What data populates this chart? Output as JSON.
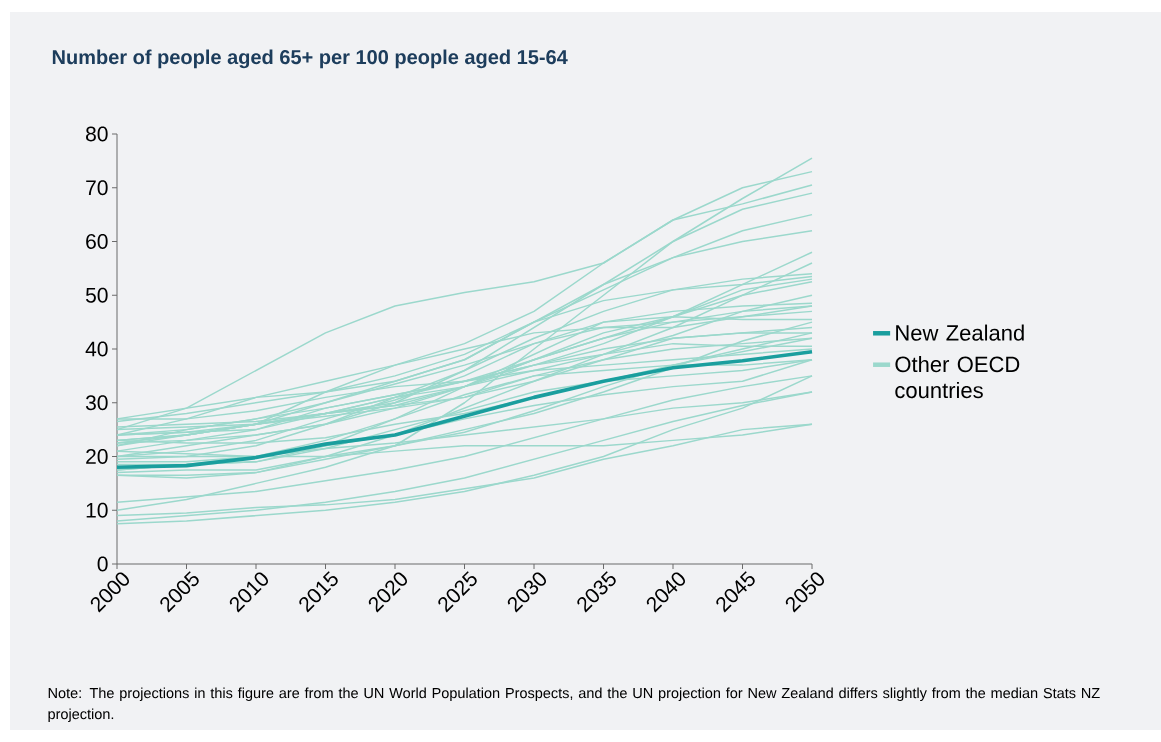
{
  "chart_data": {
    "type": "line",
    "title": "Number of people aged 65+ per 100 people aged 15-64",
    "annotations": [
      "Note: The projections in this figure are from the UN World Population Prospects, and the UN projection for New Zealand differs slightly from the median Stats NZ projection."
    ],
    "x": [
      2000,
      2005,
      2010,
      2015,
      2020,
      2025,
      2030,
      2035,
      2040,
      2045,
      2050
    ],
    "xlim": [
      2000,
      2050
    ],
    "ylim": [
      0,
      80
    ],
    "xticks": [
      2000,
      2005,
      2010,
      2015,
      2020,
      2025,
      2030,
      2035,
      2040,
      2045,
      2050
    ],
    "yticks": [
      0,
      10,
      20,
      30,
      40,
      50,
      60,
      70,
      80
    ],
    "legend": "right",
    "series": [
      {
        "name": "New Zealand",
        "color": "#1a9e9e",
        "values": [
          18,
          18.3,
          19.8,
          22.3,
          24,
          27.5,
          31,
          34,
          36.5,
          37.8,
          39.5
        ]
      },
      {
        "name": "Other OECD countries",
        "color": "#9bd8cc",
        "values": [
          25,
          29,
          36,
          43,
          48,
          50.5,
          52.5,
          56,
          64,
          70,
          73
        ]
      },
      {
        "color": "#9bd8cc",
        "values": [
          10,
          12,
          15,
          18,
          22,
          30,
          40,
          50,
          60,
          68,
          75.5
        ]
      },
      {
        "color": "#9bd8cc",
        "values": [
          27,
          29,
          31,
          34,
          37,
          41,
          47,
          56,
          64,
          67,
          70.5
        ]
      },
      {
        "color": "#9bd8cc",
        "values": [
          24,
          24.5,
          26,
          28,
          31,
          36,
          44,
          52,
          60,
          66,
          69
        ]
      },
      {
        "color": "#9bd8cc",
        "values": [
          24,
          25,
          27,
          30,
          34,
          38,
          45,
          52,
          57,
          62,
          65
        ]
      },
      {
        "color": "#9bd8cc",
        "values": [
          26.5,
          28,
          30,
          32,
          35,
          39,
          45,
          51,
          57,
          60,
          62
        ]
      },
      {
        "color": "#9bd8cc",
        "values": [
          17.5,
          18.5,
          19,
          22,
          27,
          33,
          38,
          42,
          46,
          52,
          58
        ]
      },
      {
        "color": "#9bd8cc",
        "values": [
          16.5,
          16.5,
          17,
          20,
          24,
          29,
          34,
          39,
          44,
          50,
          56
        ]
      },
      {
        "color": "#9bd8cc",
        "values": [
          24,
          27,
          31,
          32,
          34,
          38,
          45,
          49,
          51,
          52,
          53.5
        ]
      },
      {
        "color": "#9bd8cc",
        "values": [
          20,
          22,
          24,
          26,
          30,
          36,
          42,
          47,
          51,
          53,
          54
        ]
      },
      {
        "color": "#9bd8cc",
        "values": [
          19.5,
          20,
          22,
          26,
          31,
          34,
          37,
          41,
          46,
          51,
          53
        ]
      },
      {
        "color": "#9bd8cc",
        "values": [
          22.5,
          24,
          26,
          32,
          37,
          40,
          43,
          44,
          44,
          46,
          48
        ]
      },
      {
        "color": "#9bd8cc",
        "values": [
          23,
          24,
          26,
          28,
          29.5,
          33,
          39,
          45,
          47,
          48,
          48.5
        ]
      },
      {
        "color": "#9bd8cc",
        "values": [
          23,
          24,
          26,
          27.5,
          29,
          33,
          38,
          42,
          45,
          47,
          48
        ]
      },
      {
        "color": "#9bd8cc",
        "values": [
          25,
          25.5,
          26,
          30,
          33.5,
          37,
          41,
          44,
          45,
          46,
          47
        ]
      },
      {
        "color": "#9bd8cc",
        "values": [
          20,
          21,
          23,
          27,
          30.5,
          35,
          41,
          45,
          46,
          45.5,
          45.5
        ]
      },
      {
        "color": "#9bd8cc",
        "values": [
          25.5,
          26,
          26.5,
          28,
          30,
          33,
          37,
          40,
          42,
          43,
          44
        ]
      },
      {
        "color": "#9bd8cc",
        "values": [
          21,
          23,
          24,
          26,
          29,
          31,
          34,
          38,
          42,
          43,
          43
        ]
      },
      {
        "color": "#9bd8cc",
        "values": [
          24,
          24.5,
          25,
          28,
          29.5,
          31,
          35,
          38,
          40,
          41,
          42
        ]
      },
      {
        "color": "#9bd8cc",
        "values": [
          22.5,
          23,
          25,
          29,
          31.5,
          34,
          37,
          39,
          41,
          40.5,
          40.5
        ]
      },
      {
        "color": "#9bd8cc",
        "values": [
          27,
          27,
          28.5,
          31,
          33,
          34,
          36,
          37,
          38,
          39,
          40
        ]
      },
      {
        "color": "#9bd8cc",
        "values": [
          17.5,
          18.5,
          20,
          23,
          27,
          31.5,
          35,
          36,
          37,
          37,
          38
        ]
      },
      {
        "color": "#9bd8cc",
        "values": [
          18.5,
          18.5,
          19,
          21.5,
          25,
          28.5,
          32,
          34,
          35,
          36,
          38
        ]
      },
      {
        "color": "#9bd8cc",
        "values": [
          19,
          19,
          20,
          22,
          24,
          27,
          29.5,
          31.5,
          33,
          34,
          38
        ]
      },
      {
        "color": "#9bd8cc",
        "values": [
          11.5,
          12.5,
          13.5,
          15.5,
          17.5,
          20,
          23.5,
          27,
          30.5,
          33,
          35
        ]
      },
      {
        "color": "#9bd8cc",
        "values": [
          20,
          20,
          20,
          21.5,
          22.5,
          24,
          25.5,
          27,
          29,
          30,
          32
        ]
      },
      {
        "color": "#9bd8cc",
        "values": [
          9,
          9.5,
          10.5,
          11,
          12,
          14,
          16,
          19.5,
          22,
          25,
          26
        ]
      },
      {
        "color": "#9bd8cc",
        "values": [
          8,
          9,
          10,
          11.5,
          13.5,
          16,
          19.5,
          23,
          26.5,
          29.5,
          32
        ]
      },
      {
        "color": "#9bd8cc",
        "values": [
          17,
          17.5,
          17.5,
          20,
          22,
          24.5,
          28.5,
          33,
          37,
          39.5,
          42
        ]
      },
      {
        "color": "#9bd8cc",
        "values": [
          16.5,
          16,
          17,
          19.5,
          22,
          25,
          28,
          32,
          36.5,
          41.5,
          45
        ]
      },
      {
        "color": "#9bd8cc",
        "values": [
          21,
          20.5,
          20,
          20,
          21,
          22,
          22,
          22,
          23,
          24,
          26
        ]
      },
      {
        "color": "#9bd8cc",
        "values": [
          23,
          22.5,
          22.5,
          23.5,
          26,
          28,
          31,
          34,
          37,
          40,
          43
        ]
      },
      {
        "color": "#9bd8cc",
        "values": [
          22,
          24,
          26,
          28,
          31,
          33,
          36,
          39,
          42.5,
          47,
          50
        ]
      },
      {
        "color": "#9bd8cc",
        "values": [
          22,
          25,
          27,
          29,
          31.5,
          34,
          38,
          43,
          46,
          50,
          52.5
        ]
      },
      {
        "color": "#9bd8cc",
        "values": [
          7.5,
          8,
          9,
          10,
          11.5,
          13.5,
          16.5,
          20,
          25,
          29,
          35
        ]
      }
    ]
  }
}
